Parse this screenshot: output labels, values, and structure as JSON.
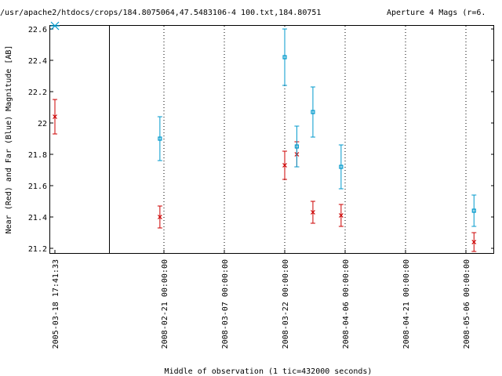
{
  "chart_data": {
    "type": "scatter",
    "title": "/usr/apache2/htdocs/crops/184.8075064,47.5483106-4 100.txt,184.80751",
    "title_right": "Aperture 4 Mags (r=6.",
    "xlabel": "Middle of observation (1 tic=432000 seconds)",
    "ylabel": "Near (Red) and Far (Blue) Magnitude [AB]",
    "ylim": [
      22.62,
      21.17
    ],
    "y_ticks": [
      "21.2",
      "21.4",
      "21.6",
      "21.8",
      "22",
      "22.2",
      "22.4",
      "22.6"
    ],
    "x_ticks": [
      "2005-03-18 17:41:33",
      "2008-02-21 00:00:00",
      "2008-03-07 00:00:00",
      "2008-03-22 00:00:00",
      "2008-04-06 00:00:00",
      "2008-04-21 00:00:00",
      "2008-05-06 00:00:00"
    ],
    "axis_break_after": "2005-03-18 17:41:33",
    "grid": "vertical dotted at date ticks",
    "series": [
      {
        "name": "Near (Red)",
        "color": "#cc0000",
        "marker": "x",
        "points": [
          {
            "date": "2005-03-18",
            "y": 22.04,
            "err": 0.11
          },
          {
            "date": "2008-02-20",
            "y": 21.4,
            "err": 0.07
          },
          {
            "date": "2008-03-22",
            "y": 21.73,
            "err": 0.09
          },
          {
            "date": "2008-03-25",
            "y": 21.8,
            "err": 0.08
          },
          {
            "date": "2008-03-29",
            "y": 21.43,
            "err": 0.07
          },
          {
            "date": "2008-04-05",
            "y": 21.41,
            "err": 0.07
          },
          {
            "date": "2008-05-08",
            "y": 21.24,
            "err": 0.06
          }
        ]
      },
      {
        "name": "Far (Blue)",
        "color": "#0099cc",
        "marker": "square",
        "points": [
          {
            "date": "2005-03-18",
            "y": 22.62,
            "err": 0
          },
          {
            "date": "2008-02-20",
            "y": 21.9,
            "err": 0.14
          },
          {
            "date": "2008-03-22",
            "y": 22.42,
            "err": 0.18
          },
          {
            "date": "2008-03-25",
            "y": 21.85,
            "err": 0.13
          },
          {
            "date": "2008-03-29",
            "y": 22.07,
            "err": 0.16
          },
          {
            "date": "2008-04-05",
            "y": 21.72,
            "err": 0.14
          },
          {
            "date": "2008-05-08",
            "y": 21.44,
            "err": 0.1
          }
        ]
      }
    ]
  }
}
